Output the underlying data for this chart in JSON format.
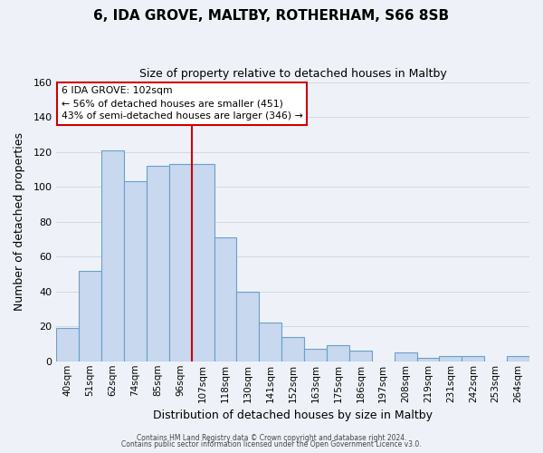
{
  "title": "6, IDA GROVE, MALTBY, ROTHERHAM, S66 8SB",
  "subtitle": "Size of property relative to detached houses in Maltby",
  "xlabel": "Distribution of detached houses by size in Maltby",
  "ylabel": "Number of detached properties",
  "bar_labels": [
    "40sqm",
    "51sqm",
    "62sqm",
    "74sqm",
    "85sqm",
    "96sqm",
    "107sqm",
    "118sqm",
    "130sqm",
    "141sqm",
    "152sqm",
    "163sqm",
    "175sqm",
    "186sqm",
    "197sqm",
    "208sqm",
    "219sqm",
    "231sqm",
    "242sqm",
    "253sqm",
    "264sqm"
  ],
  "bar_values": [
    19,
    52,
    121,
    103,
    112,
    113,
    113,
    71,
    40,
    22,
    14,
    7,
    9,
    6,
    0,
    5,
    2,
    3,
    3,
    0,
    3
  ],
  "bar_color": "#c8d8ee",
  "bar_edge_color": "#6a9fca",
  "vline_x_index": 6,
  "vline_color": "#cc0000",
  "ylim": [
    0,
    160
  ],
  "yticks": [
    0,
    20,
    40,
    60,
    80,
    100,
    120,
    140,
    160
  ],
  "annotation_title": "6 IDA GROVE: 102sqm",
  "annotation_line1": "← 56% of detached houses are smaller (451)",
  "annotation_line2": "43% of semi-detached houses are larger (346) →",
  "annotation_box_color": "#ffffff",
  "annotation_box_edge": "#cc0000",
  "footer1": "Contains HM Land Registry data © Crown copyright and database right 2024.",
  "footer2": "Contains public sector information licensed under the Open Government Licence v3.0.",
  "background_color": "#eef2f8",
  "grid_color": "#d0d8e8",
  "fig_width": 6.0,
  "fig_height": 5.0,
  "dpi": 100
}
